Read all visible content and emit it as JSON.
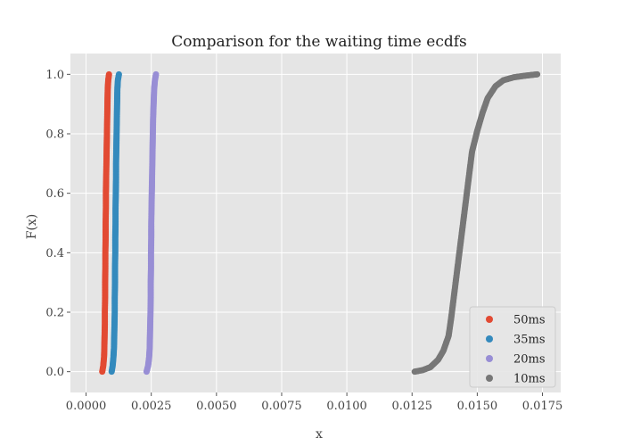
{
  "chart_data": {
    "type": "scatter",
    "title": "Comparison for the waiting time ecdfs",
    "xlabel": "x",
    "ylabel": "F(x)",
    "xlim": [
      -0.0006,
      0.0182
    ],
    "ylim": [
      -0.07,
      1.07
    ],
    "x_ticks": [
      0.0,
      0.0025,
      0.005,
      0.0075,
      0.01,
      0.0125,
      0.015,
      0.0175
    ],
    "x_tick_labels": [
      "0.0000",
      "0.0025",
      "0.0050",
      "0.0075",
      "0.0100",
      "0.0125",
      "0.0150",
      "0.0175"
    ],
    "y_ticks": [
      0.0,
      0.2,
      0.4,
      0.6,
      0.8,
      1.0
    ],
    "y_tick_labels": [
      "0.0",
      "0.2",
      "0.4",
      "0.6",
      "0.8",
      "1.0"
    ],
    "grid": true,
    "legend_position": "bottom-right",
    "background_color": "#e5e5e5",
    "series": [
      {
        "name": "50ms",
        "color": "#e24a33",
        "points": [
          [
            0.00062,
            0.0
          ],
          [
            0.00066,
            0.02
          ],
          [
            0.00069,
            0.05
          ],
          [
            0.0007,
            0.08
          ],
          [
            0.00071,
            0.12
          ],
          [
            0.00072,
            0.16
          ],
          [
            0.00072,
            0.2
          ],
          [
            0.00073,
            0.25
          ],
          [
            0.00073,
            0.3
          ],
          [
            0.00074,
            0.35
          ],
          [
            0.00074,
            0.4
          ],
          [
            0.00075,
            0.45
          ],
          [
            0.00075,
            0.5
          ],
          [
            0.00076,
            0.55
          ],
          [
            0.00076,
            0.6
          ],
          [
            0.00077,
            0.65
          ],
          [
            0.00078,
            0.7
          ],
          [
            0.00079,
            0.75
          ],
          [
            0.0008,
            0.8
          ],
          [
            0.00081,
            0.85
          ],
          [
            0.00082,
            0.9
          ],
          [
            0.00083,
            0.95
          ],
          [
            0.00085,
            0.98
          ],
          [
            0.00088,
            1.0
          ]
        ]
      },
      {
        "name": "35ms",
        "color": "#348abd",
        "points": [
          [
            0.00098,
            0.0
          ],
          [
            0.00102,
            0.02
          ],
          [
            0.00105,
            0.05
          ],
          [
            0.00107,
            0.08
          ],
          [
            0.00108,
            0.12
          ],
          [
            0.00109,
            0.16
          ],
          [
            0.0011,
            0.2
          ],
          [
            0.0011,
            0.25
          ],
          [
            0.00111,
            0.3
          ],
          [
            0.00111,
            0.35
          ],
          [
            0.00112,
            0.4
          ],
          [
            0.00112,
            0.45
          ],
          [
            0.00113,
            0.5
          ],
          [
            0.00113,
            0.55
          ],
          [
            0.00114,
            0.6
          ],
          [
            0.00115,
            0.65
          ],
          [
            0.00115,
            0.7
          ],
          [
            0.00116,
            0.75
          ],
          [
            0.00117,
            0.8
          ],
          [
            0.00118,
            0.85
          ],
          [
            0.00119,
            0.9
          ],
          [
            0.0012,
            0.95
          ],
          [
            0.00122,
            0.98
          ],
          [
            0.00126,
            1.0
          ]
        ]
      },
      {
        "name": "20ms",
        "color": "#988ed5",
        "points": [
          [
            0.00232,
            0.0
          ],
          [
            0.00238,
            0.02
          ],
          [
            0.00242,
            0.05
          ],
          [
            0.00244,
            0.08
          ],
          [
            0.00245,
            0.12
          ],
          [
            0.00246,
            0.16
          ],
          [
            0.00247,
            0.2
          ],
          [
            0.00248,
            0.25
          ],
          [
            0.00248,
            0.3
          ],
          [
            0.00249,
            0.35
          ],
          [
            0.00249,
            0.4
          ],
          [
            0.0025,
            0.45
          ],
          [
            0.0025,
            0.5
          ],
          [
            0.00251,
            0.55
          ],
          [
            0.00252,
            0.6
          ],
          [
            0.00253,
            0.65
          ],
          [
            0.00254,
            0.7
          ],
          [
            0.00255,
            0.75
          ],
          [
            0.00256,
            0.8
          ],
          [
            0.00257,
            0.85
          ],
          [
            0.00259,
            0.9
          ],
          [
            0.00261,
            0.95
          ],
          [
            0.00264,
            0.98
          ],
          [
            0.00268,
            1.0
          ]
        ]
      },
      {
        "name": "10ms",
        "color": "#777777",
        "points": [
          [
            0.0126,
            0.0
          ],
          [
            0.0129,
            0.005
          ],
          [
            0.0132,
            0.015
          ],
          [
            0.0135,
            0.04
          ],
          [
            0.0137,
            0.07
          ],
          [
            0.0139,
            0.12
          ],
          [
            0.014,
            0.18
          ],
          [
            0.0141,
            0.25
          ],
          [
            0.0142,
            0.32
          ],
          [
            0.0143,
            0.39
          ],
          [
            0.0144,
            0.46
          ],
          [
            0.0145,
            0.53
          ],
          [
            0.0146,
            0.6
          ],
          [
            0.0147,
            0.67
          ],
          [
            0.0148,
            0.74
          ],
          [
            0.015,
            0.81
          ],
          [
            0.0152,
            0.87
          ],
          [
            0.0154,
            0.92
          ],
          [
            0.0157,
            0.96
          ],
          [
            0.016,
            0.98
          ],
          [
            0.0164,
            0.99
          ],
          [
            0.0168,
            0.995
          ],
          [
            0.0173,
            1.0
          ]
        ]
      }
    ]
  }
}
